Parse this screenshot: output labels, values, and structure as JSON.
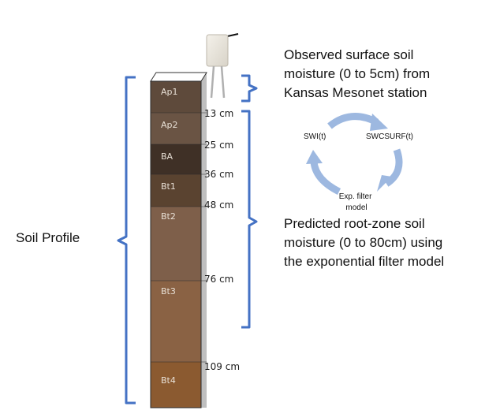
{
  "profile_label": "Soil Profile",
  "horizons": [
    {
      "name": "Ap1",
      "color": "#5e4a3b"
    },
    {
      "name": "Ap2",
      "color": "#6a5444"
    },
    {
      "name": "BA",
      "color": "#3f3026"
    },
    {
      "name": "Bt1",
      "color": "#5a4330"
    },
    {
      "name": "Bt2",
      "color": "#7e5f4a"
    },
    {
      "name": "Bt3",
      "color": "#8a6244"
    },
    {
      "name": "Bt4",
      "color": "#8b5a30"
    }
  ],
  "depths": [
    "13 cm",
    "25 cm",
    "36 cm",
    "48 cm",
    "76 cm",
    "109 cm"
  ],
  "observed_text": [
    "Observed surface soil",
    "moisture (0 to 5cm) from",
    "Kansas Mesonet station"
  ],
  "predicted_text": [
    "Predicted root-zone soil",
    "moisture (0 to 80cm) using",
    "the exponential filter model"
  ],
  "cycle": {
    "node_swi": "SWI(t)",
    "node_swcsurf": "SWCSURF(t)",
    "node_filter_line1": "Exp. filter",
    "node_filter_line2": "model",
    "arrow_color": "#9db8e0"
  },
  "colors": {
    "brace": "#4472c4",
    "column_bottom": "#8b5a30"
  }
}
